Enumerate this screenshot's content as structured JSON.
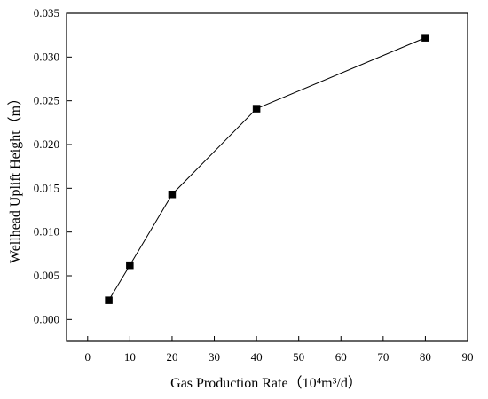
{
  "chart_data": {
    "type": "line",
    "title": "",
    "xlabel": "Gas Production Rate（10⁴m³/d）",
    "ylabel": "Wellhead Uplift Height（m）",
    "xlim": [
      -5,
      90
    ],
    "ylim": [
      -0.0025,
      0.035
    ],
    "x_ticks": [
      0,
      10,
      20,
      30,
      40,
      50,
      60,
      70,
      80,
      90
    ],
    "x_tick_labels": [
      "0",
      "10",
      "20",
      "30",
      "40",
      "50",
      "60",
      "70",
      "80",
      "90"
    ],
    "y_ticks": [
      0,
      0.005,
      0.01,
      0.015,
      0.02,
      0.025,
      0.03,
      0.035
    ],
    "y_tick_labels": [
      "0.000",
      "0.005",
      "0.010",
      "0.015",
      "0.020",
      "0.025",
      "0.030",
      "0.035"
    ],
    "grid": false,
    "legend": "none",
    "series": [
      {
        "x": [
          5,
          10,
          20,
          40,
          80
        ],
        "y": [
          0.0022,
          0.0062,
          0.0143,
          0.0241,
          0.0322
        ],
        "marker": "square",
        "color": "#000000"
      }
    ]
  }
}
